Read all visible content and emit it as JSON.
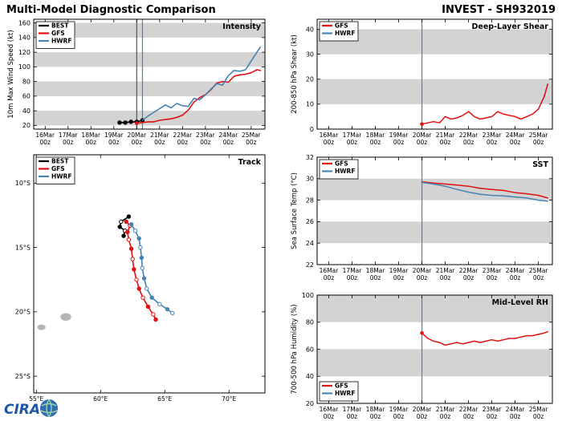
{
  "header": {
    "title": "Multi-Model Diagnostic Comparison",
    "storm_id": "INVEST - SH932019"
  },
  "logo": {
    "text": "CIRA"
  },
  "colors": {
    "best": "#000000",
    "gfs": "#e01010",
    "hwrf": "#4682b4",
    "band": "#d3d3d3",
    "vline_gray": "#555555",
    "island": "#b5b5b5"
  },
  "time_axis": {
    "labels": [
      "16Mar",
      "17Mar",
      "18Mar",
      "19Mar",
      "20Mar",
      "21Mar",
      "22Mar",
      "23Mar",
      "24Mar",
      "25Mar"
    ],
    "sub": "00z",
    "start": 16
  },
  "chart_data": [
    {
      "id": "intensity",
      "type": "line",
      "title": "Intensity",
      "ylabel": "10m Max Wind Speed (kt)",
      "xaxis": "time",
      "xlim": [
        15.5,
        25.6
      ],
      "ylim": [
        165,
        15
      ],
      "yticks": [
        20,
        40,
        60,
        80,
        100,
        120,
        140,
        160
      ],
      "bands": [
        [
          20,
          40
        ],
        [
          60,
          80
        ],
        [
          100,
          120
        ],
        [
          140,
          160
        ]
      ],
      "vlines": [
        {
          "x": 20.0,
          "color": "vline_gray"
        },
        {
          "x": 20.25,
          "color": "hwrf"
        }
      ],
      "legend": {
        "pos": "tl",
        "items": [
          {
            "label": "BEST",
            "color": "best"
          },
          {
            "label": "GFS",
            "color": "gfs"
          },
          {
            "label": "HWRF",
            "color": "hwrf"
          }
        ]
      },
      "series": [
        {
          "name": "BEST",
          "color": "best",
          "markers": "dots",
          "width": 1.6,
          "x": [
            19.25,
            19.5,
            19.75,
            20.0,
            20.25
          ],
          "y": [
            24,
            24,
            25,
            25,
            27
          ]
        },
        {
          "name": "GFS",
          "color": "gfs",
          "markers": "start",
          "width": 1.6,
          "x": [
            20.0,
            20.25,
            20.5,
            20.75,
            21.0,
            21.25,
            21.5,
            21.75,
            22.0,
            22.25,
            22.5,
            22.75,
            23.0,
            23.25,
            23.5,
            23.75,
            24.0,
            24.25,
            24.5,
            24.75,
            25.0,
            25.25,
            25.4
          ],
          "y": [
            23,
            24,
            25,
            25,
            27,
            28,
            29,
            31,
            34,
            41,
            52,
            58,
            62,
            69,
            78,
            80,
            79,
            87,
            89,
            90,
            92,
            96,
            95
          ]
        },
        {
          "name": "HWRF",
          "color": "hwrf",
          "markers": null,
          "width": 1.6,
          "x": [
            20.25,
            20.5,
            20.75,
            21.0,
            21.25,
            21.5,
            21.75,
            22.0,
            22.25,
            22.5,
            22.75,
            23.0,
            23.25,
            23.5,
            23.75,
            24.0,
            24.25,
            24.5,
            24.75,
            25.0,
            25.25,
            25.4
          ],
          "y": [
            27,
            33,
            38,
            43,
            48,
            44,
            50,
            47,
            46,
            57,
            55,
            62,
            70,
            77,
            75,
            88,
            95,
            94,
            96,
            108,
            120,
            127
          ]
        }
      ]
    },
    {
      "id": "track",
      "type": "track",
      "title": "Track",
      "xlim": [
        54.8,
        72.8
      ],
      "ylim": [
        7.8,
        26.3
      ],
      "xticks": [
        {
          "v": 55,
          "label": "55°E"
        },
        {
          "v": 60,
          "label": "60°E"
        },
        {
          "v": 65,
          "label": "65°E"
        },
        {
          "v": 70,
          "label": "70°E"
        }
      ],
      "yticks_t": [
        {
          "v": 10,
          "label": "10°S"
        },
        {
          "v": 15,
          "label": "15°S"
        },
        {
          "v": 20,
          "label": "20°S"
        },
        {
          "v": 25,
          "label": "25°S"
        }
      ],
      "legend": {
        "pos": "tl",
        "items": [
          {
            "label": "BEST",
            "color": "best"
          },
          {
            "label": "GFS",
            "color": "gfs"
          },
          {
            "label": "HWRF",
            "color": "hwrf"
          }
        ]
      },
      "islands": [
        {
          "lon": 55.4,
          "lat": 21.2,
          "rx": 0.32,
          "ry": 0.22
        },
        {
          "lon": 57.3,
          "lat": 20.4,
          "rx": 0.42,
          "ry": 0.3
        }
      ],
      "series": [
        {
          "name": "BEST",
          "color": "best",
          "markers": "alt",
          "width": 1.6,
          "lon": [
            62.2,
            61.6,
            61.5,
            61.9,
            61.8
          ],
          "lat": [
            12.6,
            13.0,
            13.4,
            13.7,
            14.1
          ]
        },
        {
          "name": "GFS",
          "color": "gfs",
          "markers": "alt",
          "width": 1.6,
          "lon": [
            62.0,
            62.3,
            62.1,
            62.2,
            62.4,
            62.5,
            62.6,
            62.8,
            63.0,
            63.3,
            63.7,
            64.1,
            64.3
          ],
          "lat": [
            13.0,
            13.3,
            13.8,
            14.4,
            15.1,
            15.9,
            16.7,
            17.5,
            18.2,
            18.9,
            19.6,
            20.2,
            20.6
          ]
        },
        {
          "name": "HWRF",
          "color": "hwrf",
          "markers": "alt",
          "width": 1.6,
          "lon": [
            62.4,
            62.7,
            63.0,
            63.1,
            63.2,
            63.25,
            63.4,
            63.6,
            64.0,
            64.6,
            65.2,
            65.6
          ],
          "lat": [
            13.2,
            13.7,
            14.3,
            15.0,
            15.8,
            16.6,
            17.4,
            18.2,
            18.9,
            19.4,
            19.8,
            20.1
          ]
        }
      ]
    },
    {
      "id": "shear",
      "type": "line",
      "title": "Deep-Layer Shear",
      "ylabel": "200-850 hPa Shear (kt)",
      "xaxis": "time",
      "xlim": [
        15.5,
        25.6
      ],
      "ylim": [
        44,
        0
      ],
      "yticks": [
        0,
        10,
        20,
        30,
        40
      ],
      "bands": [
        [
          10,
          20
        ],
        [
          30,
          40
        ]
      ],
      "vlines": [
        {
          "x": 20.0,
          "color": "hwrf"
        }
      ],
      "legend": {
        "pos": "tl",
        "items": [
          {
            "label": "GFS",
            "color": "gfs"
          },
          {
            "label": "HWRF",
            "color": "hwrf"
          }
        ]
      },
      "series": [
        {
          "name": "GFS",
          "color": "gfs",
          "markers": "start",
          "width": 1.5,
          "x": [
            20.0,
            20.25,
            20.5,
            20.75,
            21.0,
            21.25,
            21.5,
            21.75,
            22.0,
            22.25,
            22.5,
            22.75,
            23.0,
            23.25,
            23.5,
            23.75,
            24.0,
            24.25,
            24.5,
            24.75,
            25.0,
            25.25,
            25.4
          ],
          "y": [
            2,
            2.5,
            3,
            2.5,
            5,
            4,
            4.5,
            5.5,
            7,
            5,
            4,
            4.5,
            5,
            7,
            6,
            5.5,
            5,
            4,
            5,
            6,
            8,
            13,
            18
          ]
        },
        {
          "name": "HWRF",
          "color": "hwrf",
          "markers": null,
          "width": 1.5,
          "x": [],
          "y": []
        }
      ]
    },
    {
      "id": "sst",
      "type": "line",
      "title": "SST",
      "ylabel": "Sea Surface Temp (°C)",
      "xaxis": "time",
      "xlim": [
        15.5,
        25.6
      ],
      "ylim": [
        32,
        22
      ],
      "yticks": [
        22,
        24,
        26,
        28,
        30,
        32
      ],
      "bands": [
        [
          24,
          26
        ],
        [
          28,
          30
        ]
      ],
      "vlines": [
        {
          "x": 20.0,
          "color": "hwrf"
        }
      ],
      "legend": {
        "pos": "tl",
        "items": [
          {
            "label": "GFS",
            "color": "gfs"
          },
          {
            "label": "HWRF",
            "color": "hwrf"
          }
        ]
      },
      "series": [
        {
          "name": "GFS",
          "color": "gfs",
          "markers": null,
          "width": 1.5,
          "x": [
            20.0,
            20.5,
            21.0,
            21.5,
            22.0,
            22.5,
            23.0,
            23.5,
            24.0,
            24.5,
            25.0,
            25.4
          ],
          "y": [
            29.7,
            29.6,
            29.5,
            29.4,
            29.3,
            29.1,
            29.0,
            28.9,
            28.7,
            28.6,
            28.45,
            28.2
          ]
        },
        {
          "name": "HWRF",
          "color": "hwrf",
          "markers": null,
          "width": 1.5,
          "x": [
            20.0,
            20.5,
            21.0,
            21.5,
            22.0,
            22.5,
            23.0,
            23.5,
            24.0,
            24.5,
            25.0,
            25.4
          ],
          "y": [
            29.65,
            29.5,
            29.3,
            29.0,
            28.75,
            28.55,
            28.45,
            28.4,
            28.3,
            28.2,
            28.0,
            27.9
          ]
        }
      ]
    },
    {
      "id": "rh",
      "type": "line",
      "title": "Mid-Level RH",
      "ylabel": "700-500 hPa Humidity (%)",
      "xaxis": "time",
      "xlim": [
        15.5,
        25.6
      ],
      "ylim": [
        100,
        20
      ],
      "yticks": [
        20,
        40,
        60,
        80,
        100
      ],
      "bands": [
        [
          40,
          60
        ],
        [
          80,
          100
        ]
      ],
      "vlines": [
        {
          "x": 20.0,
          "color": "hwrf"
        }
      ],
      "legend": {
        "pos": "bl",
        "items": [
          {
            "label": "GFS",
            "color": "gfs"
          },
          {
            "label": "HWRF",
            "color": "hwrf"
          }
        ]
      },
      "series": [
        {
          "name": "GFS",
          "color": "gfs",
          "markers": "start",
          "width": 1.5,
          "x": [
            20.0,
            20.25,
            20.5,
            20.75,
            21.0,
            21.25,
            21.5,
            21.75,
            22.0,
            22.25,
            22.5,
            22.75,
            23.0,
            23.25,
            23.5,
            23.75,
            24.0,
            24.25,
            24.5,
            24.75,
            25.0,
            25.25,
            25.4
          ],
          "y": [
            72,
            68,
            66,
            65,
            63,
            64,
            65,
            64,
            65,
            66,
            65,
            66,
            67,
            66,
            67,
            68,
            68,
            69,
            70,
            70,
            71,
            72,
            73
          ]
        },
        {
          "name": "HWRF",
          "color": "hwrf",
          "markers": null,
          "width": 1.5,
          "x": [],
          "y": []
        }
      ]
    }
  ]
}
